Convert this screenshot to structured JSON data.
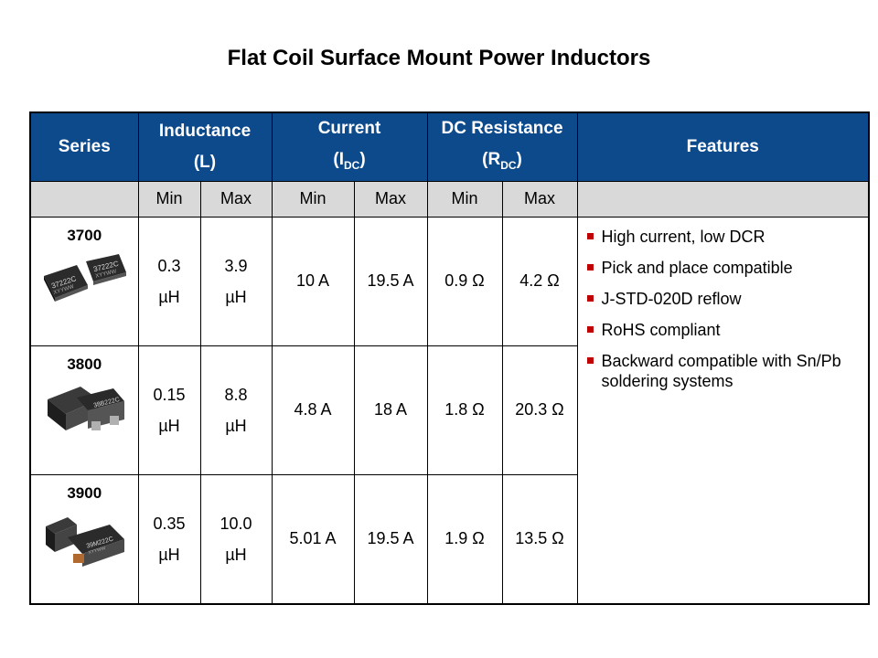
{
  "title": "Flat Coil Surface Mount Power Inductors",
  "header": {
    "series": "Series",
    "inductance": "Inductance",
    "inductance_sym": "(L)",
    "current": "Current",
    "current_sym_main": "I",
    "current_sym_sub": "DC",
    "resistance": "DC Resistance",
    "resistance_sym_main": "R",
    "resistance_sym_sub": "DC",
    "features": "Features"
  },
  "subheader": {
    "min": "Min",
    "max": "Max"
  },
  "rows": [
    {
      "series": "3700",
      "ind_min": "0.3",
      "ind_max": "3.9",
      "unit": "µH",
      "cur_min": "10 A",
      "cur_max": "19.5 A",
      "res_min": "0.9 Ω",
      "res_max": "4.2 Ω",
      "part_label_1": "37222C",
      "part_label_2": "XYYWW"
    },
    {
      "series": "3800",
      "ind_min": "0.15",
      "ind_max": "8.8",
      "unit": "µH",
      "cur_min": "4.8 A",
      "cur_max": "18 A",
      "res_min": "1.8 Ω",
      "res_max": "20.3 Ω",
      "part_label_1": "38B222C",
      "part_label_2": ""
    },
    {
      "series": "3900",
      "ind_min": "0.35",
      "ind_max": "10.0",
      "unit": "µH",
      "cur_min": "5.01 A",
      "cur_max": "19.5 A",
      "res_min": "1.9 Ω",
      "res_max": "13.5 Ω",
      "part_label_1": "39M222C",
      "part_label_2": "XYYWW"
    }
  ],
  "features": [
    "High current, low DCR",
    "Pick and place compatible",
    "J-STD-020D reflow",
    "RoHS compliant",
    "Backward compatible with Sn/Pb soldering systems"
  ],
  "colors": {
    "header_bg": "#0d4a8c",
    "subheader_bg": "#d9d9d9",
    "bullet": "#c00000"
  }
}
